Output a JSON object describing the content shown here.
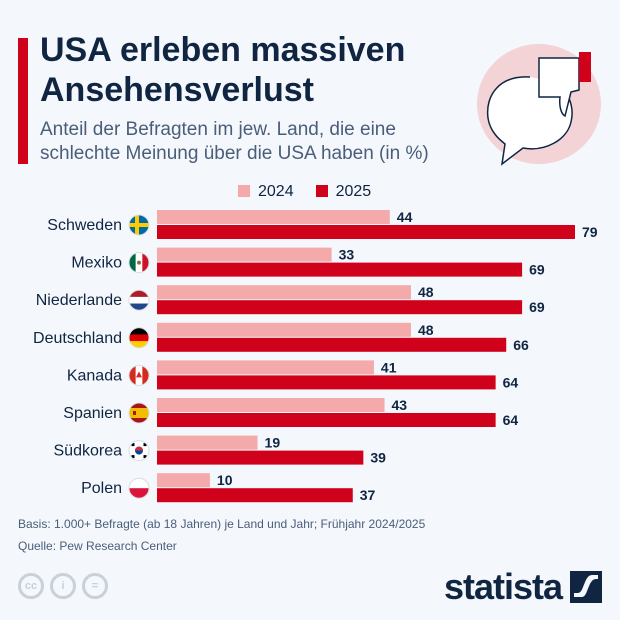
{
  "title": "USA erleben massiven Ansehensverlust",
  "subtitle": "Anteil der Befragten im jew. Land, die eine schlechte Meinung über die USA haben (in %)",
  "footer": {
    "basis": "Basis: 1.000+ Befragte (ab 18 Jahren) je Land und Jahr; Frühjahr 2024/2025",
    "source": "Quelle: Pew Research Center",
    "brand": "statista",
    "license_icons": [
      "cc-icon",
      "by-icon",
      "nd-icon"
    ]
  },
  "colors": {
    "2024": "#f4a9ab",
    "2025": "#d0021b",
    "text": "#0f2542"
  },
  "chart_data": {
    "type": "bar",
    "orientation": "horizontal",
    "categories": [
      "Schweden",
      "Mexiko",
      "Niederlande",
      "Deutschland",
      "Kanada",
      "Spanien",
      "Südkorea",
      "Polen"
    ],
    "flags": [
      "sweden-flag-icon",
      "mexico-flag-icon",
      "netherlands-flag-icon",
      "germany-flag-icon",
      "canada-flag-icon",
      "spain-flag-icon",
      "south-korea-flag-icon",
      "poland-flag-icon"
    ],
    "series": [
      {
        "name": "2024",
        "values": [
          44,
          33,
          48,
          48,
          41,
          43,
          19,
          10
        ]
      },
      {
        "name": "2025",
        "values": [
          79,
          69,
          69,
          66,
          64,
          64,
          39,
          37
        ]
      }
    ],
    "xlim": [
      0,
      79
    ],
    "grid": false,
    "legend": "top"
  }
}
